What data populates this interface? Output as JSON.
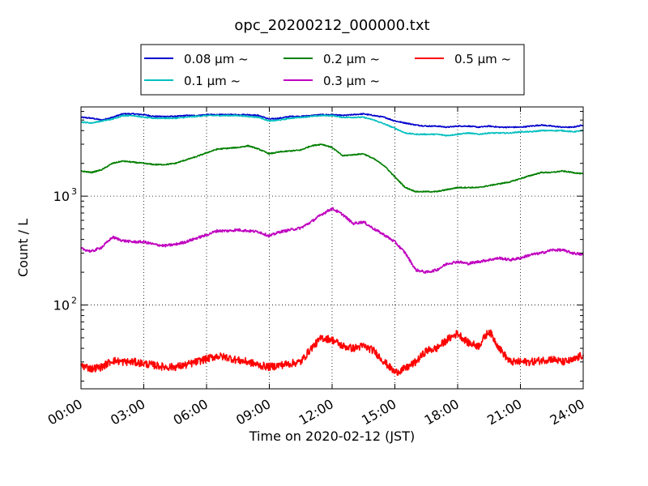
{
  "chart_data": {
    "type": "line",
    "title": "opc_20200212_000000.txt",
    "xlabel": "Time on 2020-02-12 (JST)",
    "ylabel": "Count / L",
    "x_ticks": [
      "00:00",
      "03:00",
      "06:00",
      "09:00",
      "12:00",
      "15:00",
      "18:00",
      "21:00",
      "24:00"
    ],
    "y_ticks": [
      {
        "label": "10",
        "sup": "3",
        "value": 1000
      },
      {
        "label": "10",
        "sup": "2",
        "value": 100
      }
    ],
    "ylog": true,
    "xlim": [
      0,
      24
    ],
    "ylim": [
      17,
      6600
    ],
    "grid": true,
    "legend": "top-center",
    "series": [
      {
        "name": "0.08 μm ~",
        "color": "#0000cc",
        "x": [
          0,
          0.5,
          1,
          1.5,
          2,
          2.5,
          3,
          3.5,
          4,
          4.5,
          5,
          5.5,
          6,
          6.5,
          7,
          7.5,
          8,
          8.5,
          9,
          9.5,
          10,
          10.5,
          11,
          11.5,
          12,
          12.5,
          13,
          13.5,
          14,
          14.5,
          15,
          15.5,
          16,
          16.5,
          17,
          17.5,
          18,
          18.5,
          19,
          19.5,
          20,
          20.5,
          21,
          21.5,
          22,
          22.5,
          23,
          23.5,
          24
        ],
        "y": [
          5300,
          5200,
          5000,
          5300,
          5700,
          5700,
          5600,
          5400,
          5400,
          5400,
          5500,
          5500,
          5600,
          5600,
          5600,
          5600,
          5600,
          5500,
          5100,
          5200,
          5400,
          5400,
          5500,
          5600,
          5600,
          5500,
          5600,
          5700,
          5500,
          5300,
          4900,
          4700,
          4500,
          4400,
          4400,
          4300,
          4400,
          4400,
          4300,
          4400,
          4300,
          4300,
          4300,
          4400,
          4500,
          4400,
          4300,
          4300,
          4500
        ]
      },
      {
        "name": "0.1 μm ~",
        "color": "#00bfbf",
        "x": [
          0,
          0.5,
          1,
          1.5,
          2,
          2.5,
          3,
          3.5,
          4,
          4.5,
          5,
          5.5,
          6,
          6.5,
          7,
          7.5,
          8,
          8.5,
          9,
          9.5,
          10,
          10.5,
          11,
          11.5,
          12,
          12.5,
          13,
          13.5,
          14,
          14.5,
          15,
          15.5,
          16,
          16.5,
          17,
          17.5,
          18,
          18.5,
          19,
          19.5,
          20,
          20.5,
          21,
          21.5,
          22,
          22.5,
          23,
          23.5,
          24
        ],
        "y": [
          4800,
          4700,
          4900,
          5100,
          5500,
          5500,
          5300,
          5200,
          5200,
          5200,
          5300,
          5400,
          5500,
          5500,
          5500,
          5500,
          5400,
          5300,
          4900,
          5000,
          5200,
          5300,
          5400,
          5500,
          5500,
          5300,
          5300,
          5300,
          5000,
          4600,
          4200,
          3800,
          3700,
          3700,
          3700,
          3600,
          3700,
          3800,
          3700,
          3800,
          3800,
          3800,
          3900,
          3900,
          4000,
          4000,
          4000,
          3900,
          4000
        ]
      },
      {
        "name": "0.2 μm ~",
        "color": "#007f00",
        "x": [
          0,
          0.5,
          1,
          1.5,
          2,
          2.5,
          3,
          3.5,
          4,
          4.5,
          5,
          5.5,
          6,
          6.5,
          7,
          7.5,
          8,
          8.5,
          9,
          9.5,
          10,
          10.5,
          11,
          11.5,
          12,
          12.5,
          13,
          13.5,
          14,
          14.5,
          15,
          15.5,
          16,
          16.5,
          17,
          17.5,
          18,
          18.5,
          19,
          19.5,
          20,
          20.5,
          21,
          21.5,
          22,
          22.5,
          23,
          23.5,
          24
        ],
        "y": [
          1700,
          1650,
          1750,
          2000,
          2100,
          2050,
          2000,
          1950,
          1950,
          2000,
          2150,
          2300,
          2500,
          2700,
          2750,
          2800,
          2900,
          2700,
          2450,
          2550,
          2600,
          2650,
          2900,
          3000,
          2800,
          2350,
          2400,
          2450,
          2200,
          1900,
          1500,
          1200,
          1100,
          1100,
          1100,
          1150,
          1200,
          1200,
          1200,
          1250,
          1300,
          1350,
          1450,
          1550,
          1650,
          1650,
          1700,
          1650,
          1600
        ]
      },
      {
        "name": "0.3 μm ~",
        "color": "#bf00bf",
        "x": [
          0,
          0.5,
          1,
          1.5,
          2,
          2.5,
          3,
          3.5,
          4,
          4.5,
          5,
          5.5,
          6,
          6.5,
          7,
          7.5,
          8,
          8.5,
          9,
          9.5,
          10,
          10.5,
          11,
          11.5,
          12,
          12.5,
          13,
          13.5,
          14,
          14.5,
          15,
          15.5,
          16,
          16.5,
          17,
          17.5,
          18,
          18.5,
          19,
          19.5,
          20,
          20.5,
          21,
          21.5,
          22,
          22.5,
          23,
          23.5,
          24
        ],
        "y": [
          330,
          310,
          340,
          420,
          390,
          380,
          380,
          360,
          350,
          360,
          380,
          410,
          440,
          480,
          480,
          490,
          480,
          470,
          430,
          470,
          490,
          510,
          580,
          680,
          770,
          680,
          560,
          580,
          500,
          440,
          380,
          300,
          210,
          200,
          210,
          240,
          250,
          240,
          250,
          260,
          270,
          260,
          270,
          290,
          300,
          320,
          320,
          300,
          290
        ]
      },
      {
        "name": "0.5 μm ~",
        "color": "#ff0000",
        "x": [
          0,
          0.5,
          1,
          1.5,
          2,
          2.5,
          3,
          3.5,
          4,
          4.5,
          5,
          5.5,
          6,
          6.5,
          7,
          7.5,
          8,
          8.5,
          9,
          9.5,
          10,
          10.5,
          11,
          11.5,
          12,
          12.5,
          13,
          13.5,
          14,
          14.5,
          15,
          15.5,
          16,
          16.5,
          17,
          17.5,
          18,
          18.5,
          19,
          19.5,
          20,
          20.5,
          21,
          21.5,
          22,
          22.5,
          23,
          23.5,
          24
        ],
        "y": [
          28,
          26,
          27,
          31,
          30,
          30,
          29,
          28,
          27,
          27,
          28,
          30,
          32,
          34,
          33,
          31,
          30,
          28,
          27,
          28,
          29,
          30,
          40,
          50,
          48,
          42,
          40,
          42,
          38,
          30,
          24,
          26,
          30,
          38,
          40,
          48,
          55,
          45,
          42,
          58,
          40,
          30,
          30,
          30,
          31,
          32,
          30,
          31,
          35
        ]
      }
    ]
  }
}
